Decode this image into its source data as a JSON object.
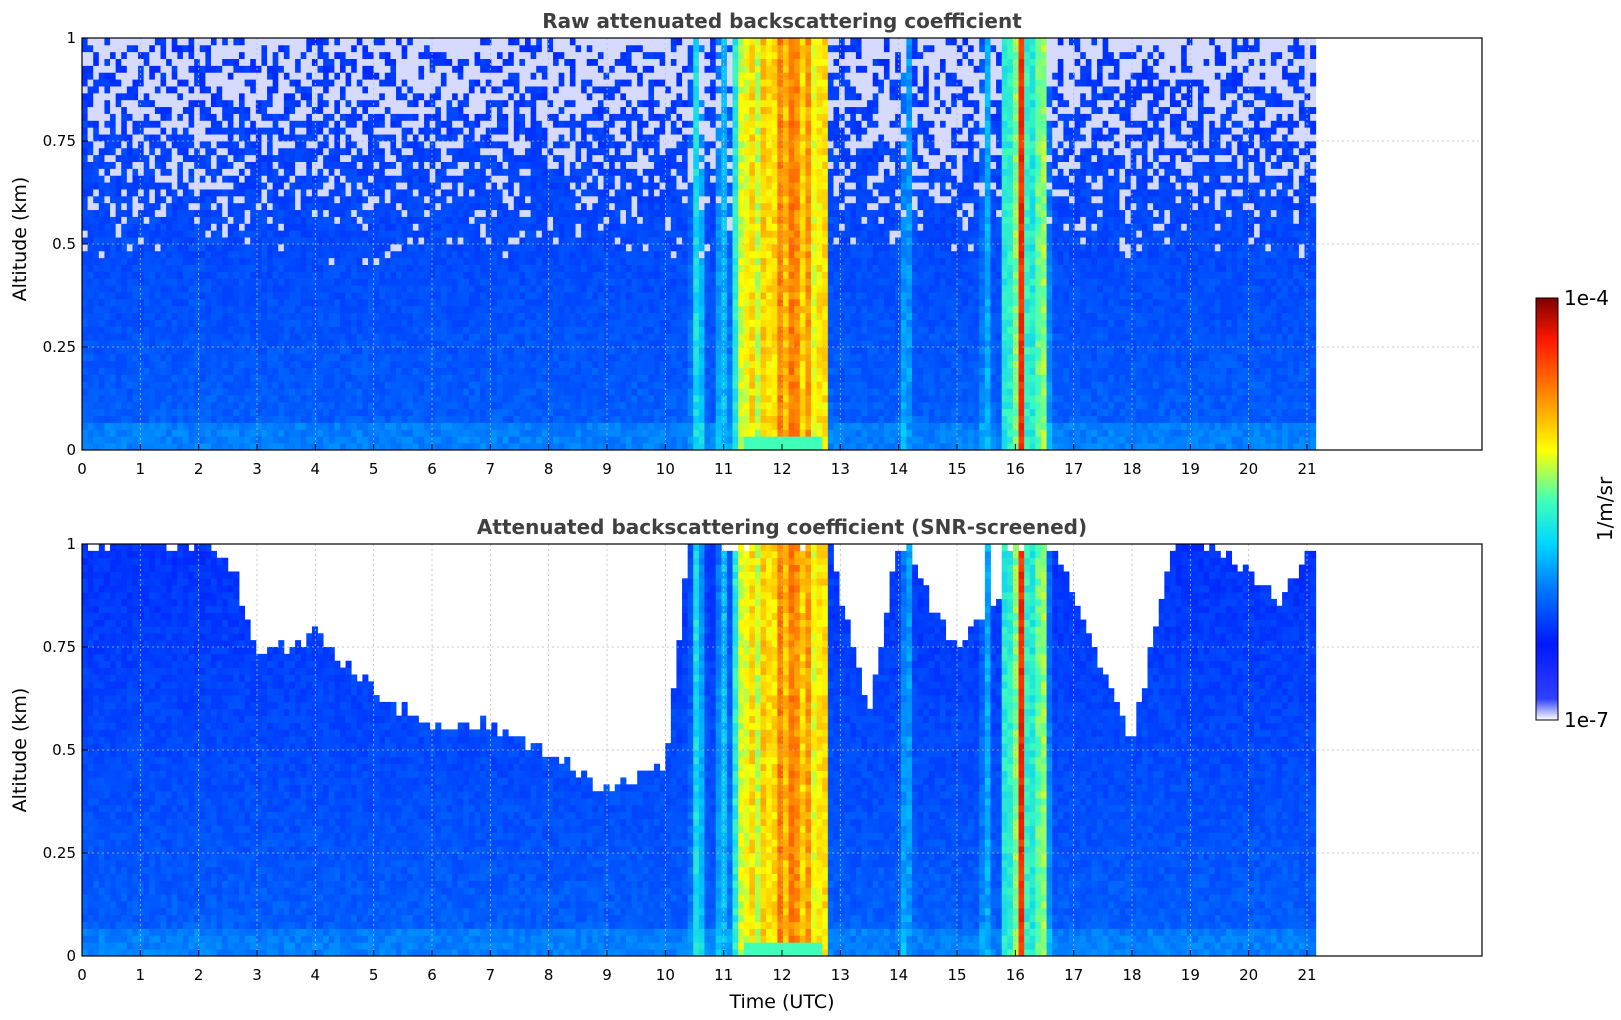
{
  "colors": {
    "colormap": [
      "#ffffff",
      "#0018ff",
      "#0060ff",
      "#00c8ff",
      "#40ffb8",
      "#ffff00",
      "#ff8000",
      "#ff2000",
      "#800000"
    ],
    "grid": "#bbbbbb",
    "title": "#404040"
  },
  "colorbar": {
    "max_label": "1e-4",
    "min_label": "1e-7",
    "unit": "1/m/sr",
    "scale": "log"
  },
  "chart_data": [
    {
      "type": "heatmap",
      "title": "Raw attenuated backscattering coefficient",
      "xlabel": "",
      "ylabel": "Altitude (km)",
      "xlim": [
        0,
        24
      ],
      "ylim": [
        0,
        1
      ],
      "data_extent_x": [
        0,
        21.15
      ],
      "xticks": [
        "0",
        "1",
        "2",
        "3",
        "4",
        "5",
        "6",
        "7",
        "8",
        "9",
        "10",
        "11",
        "12",
        "13",
        "14",
        "15",
        "16",
        "17",
        "18",
        "19",
        "20",
        "21"
      ],
      "yticks": [
        "0",
        "0.25",
        "0.5",
        "0.75",
        "1"
      ],
      "grid": true,
      "high_signal_intervals_utc": [
        [
          10.45,
          10.65
        ],
        [
          10.9,
          11.05
        ],
        [
          11.25,
          12.75
        ],
        [
          15.45,
          15.55
        ],
        [
          15.75,
          16.55
        ]
      ],
      "peak_interval_utc": [
        16.05,
        16.2
      ]
    },
    {
      "type": "heatmap",
      "title": "Attenuated backscattering coefficient (SNR-screened)",
      "xlabel": "Time (UTC)",
      "ylabel": "Altitude (km)",
      "xlim": [
        0,
        24
      ],
      "ylim": [
        0,
        1
      ],
      "data_extent_x": [
        0,
        21.15
      ],
      "xticks": [
        "0",
        "1",
        "2",
        "3",
        "4",
        "5",
        "6",
        "7",
        "8",
        "9",
        "10",
        "11",
        "12",
        "13",
        "14",
        "15",
        "16",
        "17",
        "18",
        "19",
        "20",
        "21"
      ],
      "yticks": [
        "0",
        "0.25",
        "0.5",
        "0.75",
        "1"
      ],
      "grid": true,
      "screened_top_km": {
        "time_utc": [
          0,
          1,
          2,
          2.6,
          3,
          4,
          5,
          6,
          7,
          8,
          9,
          10,
          10.4,
          12.8,
          13.5,
          14,
          15,
          16.6,
          17.5,
          18,
          18.7,
          19.5,
          20.5,
          21.15
        ],
        "altitude_km": [
          1.0,
          1.0,
          1.0,
          0.95,
          0.72,
          0.78,
          0.65,
          0.55,
          0.56,
          0.5,
          0.4,
          0.45,
          1.0,
          1.0,
          0.6,
          1.0,
          0.75,
          1.0,
          0.7,
          0.52,
          1.0,
          1.0,
          0.85,
          1.0
        ]
      }
    }
  ]
}
